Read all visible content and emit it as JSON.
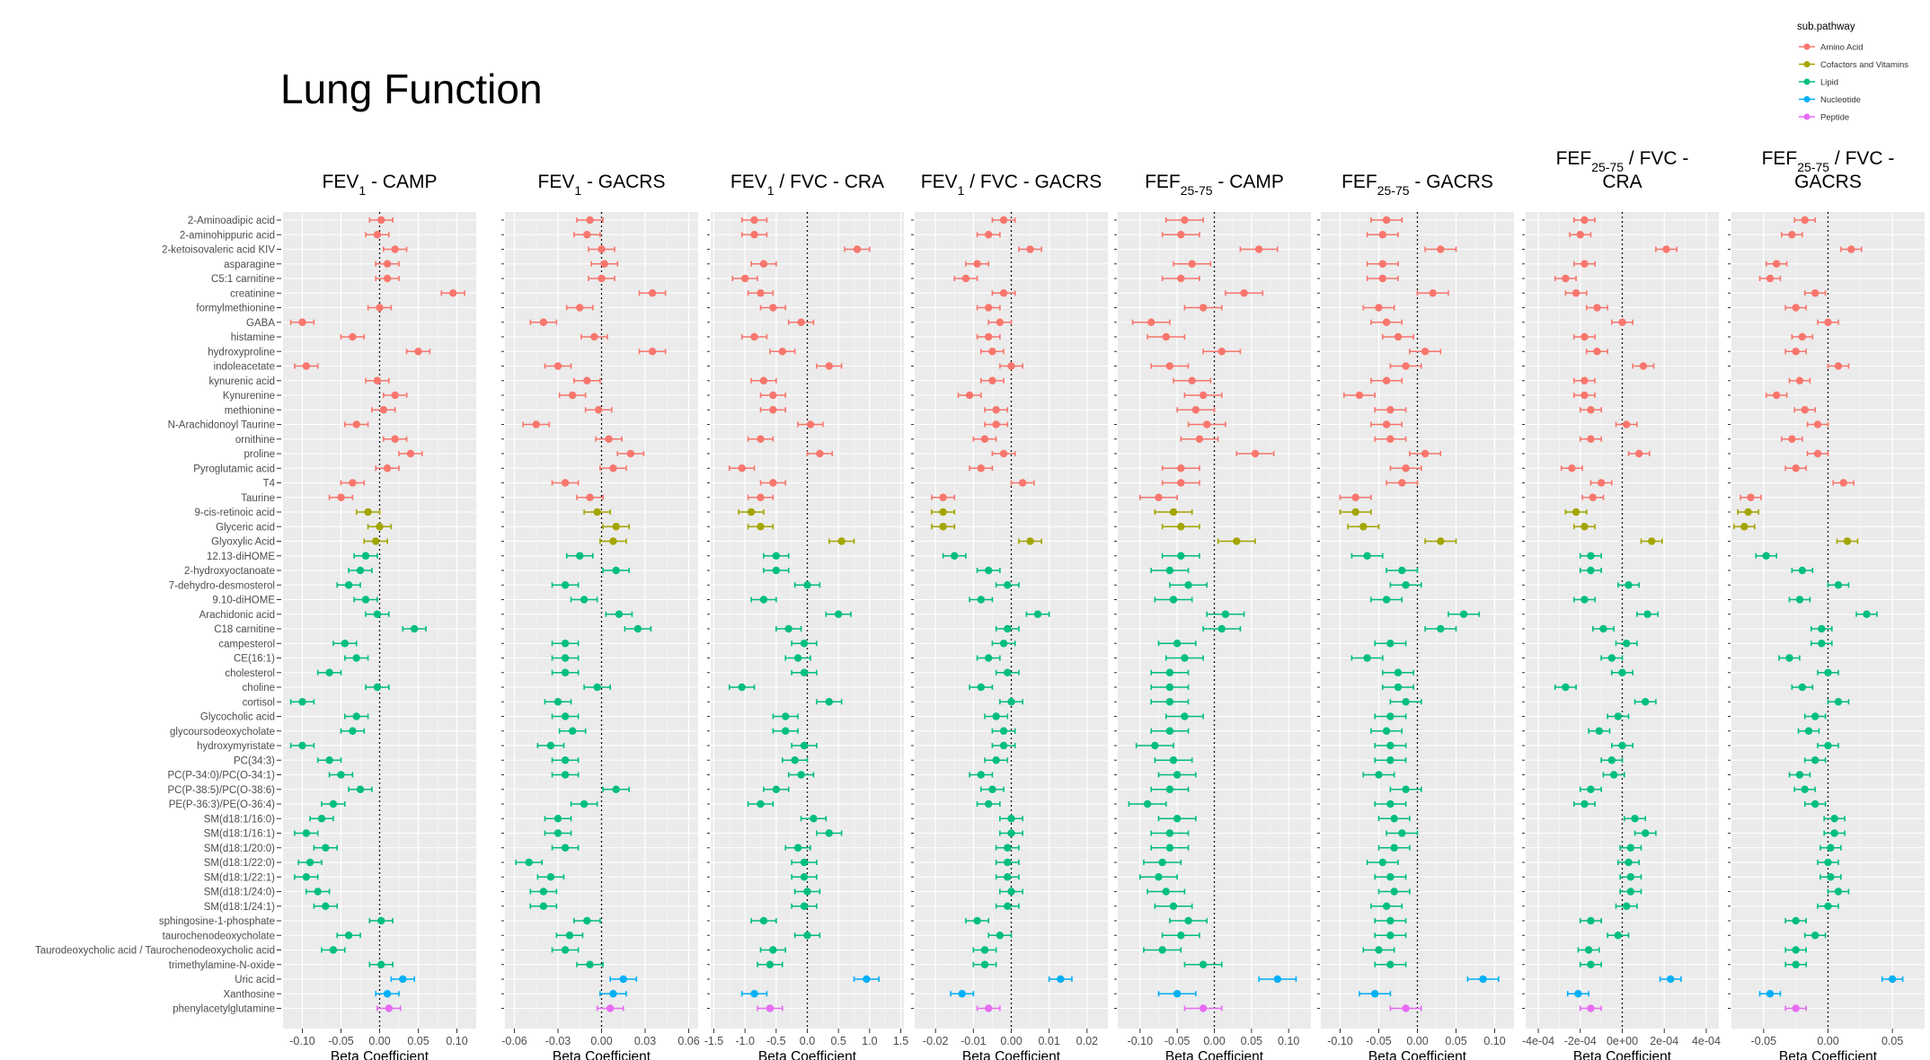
{
  "title": "Lung Function",
  "legend": {
    "title": "sub.pathway",
    "position": "top-right",
    "items": [
      {
        "label": "Amino Acid",
        "color": "#F8766D"
      },
      {
        "label": "Cofactors and Vitamins",
        "color": "#A3A500"
      },
      {
        "label": "Lipid",
        "color": "#00BF7D"
      },
      {
        "label": "Nucleotide",
        "color": "#00B0F6"
      },
      {
        "label": "Peptide",
        "color": "#E76BF3"
      }
    ]
  },
  "chart_data": {
    "type": "forest",
    "xlabel": "Beta Coefficient",
    "grid": true,
    "reference_line": 0,
    "metabolites": [
      {
        "name": "2-Aminoadipic acid",
        "group": "Amino Acid"
      },
      {
        "name": "2-aminohippuric acid",
        "group": "Amino Acid"
      },
      {
        "name": "2-ketoisovaleric acid KIV",
        "group": "Amino Acid"
      },
      {
        "name": "asparagine",
        "group": "Amino Acid"
      },
      {
        "name": "C5:1 carnitine",
        "group": "Amino Acid"
      },
      {
        "name": "creatinine",
        "group": "Amino Acid"
      },
      {
        "name": "formylmethionine",
        "group": "Amino Acid"
      },
      {
        "name": "GABA",
        "group": "Amino Acid"
      },
      {
        "name": "histamine",
        "group": "Amino Acid"
      },
      {
        "name": "hydroxyproline",
        "group": "Amino Acid"
      },
      {
        "name": "indoleacetate",
        "group": "Amino Acid"
      },
      {
        "name": "kynurenic acid",
        "group": "Amino Acid"
      },
      {
        "name": "Kynurenine",
        "group": "Amino Acid"
      },
      {
        "name": "methionine",
        "group": "Amino Acid"
      },
      {
        "name": "N-Arachidonoyl Taurine",
        "group": "Amino Acid"
      },
      {
        "name": "ornithine",
        "group": "Amino Acid"
      },
      {
        "name": "proline",
        "group": "Amino Acid"
      },
      {
        "name": "Pyroglutamic acid",
        "group": "Amino Acid"
      },
      {
        "name": "T4",
        "group": "Amino Acid"
      },
      {
        "name": "Taurine",
        "group": "Amino Acid"
      },
      {
        "name": "9-cis-retinoic acid",
        "group": "Cofactors and Vitamins"
      },
      {
        "name": "Glyceric acid",
        "group": "Cofactors and Vitamins"
      },
      {
        "name": "Glyoxylic Acid",
        "group": "Cofactors and Vitamins"
      },
      {
        "name": "12.13-diHOME",
        "group": "Lipid"
      },
      {
        "name": "2-hydroxyoctanoate",
        "group": "Lipid"
      },
      {
        "name": "7-dehydro-desmosterol",
        "group": "Lipid"
      },
      {
        "name": "9.10-diHOME",
        "group": "Lipid"
      },
      {
        "name": "Arachidonic acid",
        "group": "Lipid"
      },
      {
        "name": "C18 carnitine",
        "group": "Lipid"
      },
      {
        "name": "campesterol",
        "group": "Lipid"
      },
      {
        "name": "CE(16:1)",
        "group": "Lipid"
      },
      {
        "name": "cholesterol",
        "group": "Lipid"
      },
      {
        "name": "choline",
        "group": "Lipid"
      },
      {
        "name": "cortisol",
        "group": "Lipid"
      },
      {
        "name": "Glycocholic acid",
        "group": "Lipid"
      },
      {
        "name": "glycoursodeoxycholate",
        "group": "Lipid"
      },
      {
        "name": "hydroxymyristate",
        "group": "Lipid"
      },
      {
        "name": "PC(34:3)",
        "group": "Lipid"
      },
      {
        "name": "PC(P-34:0)/PC(O-34:1)",
        "group": "Lipid"
      },
      {
        "name": "PC(P-38:5)/PC(O-38:6)",
        "group": "Lipid"
      },
      {
        "name": "PE(P-36:3)/PE(O-36:4)",
        "group": "Lipid"
      },
      {
        "name": "SM(d18:1/16:0)",
        "group": "Lipid"
      },
      {
        "name": "SM(d18:1/16:1)",
        "group": "Lipid"
      },
      {
        "name": "SM(d18:1/20:0)",
        "group": "Lipid"
      },
      {
        "name": "SM(d18:1/22:0)",
        "group": "Lipid"
      },
      {
        "name": "SM(d18:1/22:1)",
        "group": "Lipid"
      },
      {
        "name": "SM(d18:1/24:0)",
        "group": "Lipid"
      },
      {
        "name": "SM(d18:1/24:1)",
        "group": "Lipid"
      },
      {
        "name": "sphingosine-1-phosphate",
        "group": "Lipid"
      },
      {
        "name": "taurochenodeoxycholate",
        "group": "Lipid"
      },
      {
        "name": "Taurodeoxycholic acid / Taurochenodeoxycholic acid",
        "group": "Lipid"
      },
      {
        "name": "trimethylamine-N-oxide",
        "group": "Lipid"
      },
      {
        "name": "Uric acid",
        "group": "Nucleotide"
      },
      {
        "name": "Xanthosine",
        "group": "Nucleotide"
      },
      {
        "name": "phenylacetylglutamine",
        "group": "Peptide"
      }
    ],
    "panels": [
      {
        "title_main": "FEV",
        "title_sub": "1",
        "title_rest": " - CAMP",
        "xlim": [
          -0.125,
          0.125
        ],
        "ticks": [
          -0.1,
          -0.05,
          0.0,
          0.05,
          0.1
        ],
        "tick_labels": [
          "-0.10",
          "-0.05",
          "0.00",
          "0.05",
          "0.10"
        ],
        "estimates": [
          0.002,
          -0.003,
          0.02,
          0.01,
          0.01,
          0.095,
          0.0,
          -0.1,
          -0.035,
          0.05,
          -0.095,
          -0.003,
          0.02,
          0.005,
          -0.03,
          0.02,
          0.04,
          0.01,
          -0.035,
          -0.05,
          -0.015,
          0.0,
          -0.005,
          -0.018,
          -0.025,
          -0.04,
          -0.018,
          -0.003,
          0.045,
          -0.045,
          -0.03,
          -0.065,
          -0.003,
          -0.1,
          -0.03,
          -0.035,
          -0.1,
          -0.065,
          -0.05,
          -0.025,
          -0.06,
          -0.075,
          -0.095,
          -0.07,
          -0.09,
          -0.095,
          -0.08,
          -0.07,
          0.002,
          -0.04,
          -0.06,
          0.002,
          0.03,
          0.01,
          0.012
        ],
        "ci": 0.015
      },
      {
        "title_main": "FEV",
        "title_sub": "1",
        "title_rest": " - GACRS",
        "xlim": [
          -0.0665,
          0.0665
        ],
        "ticks": [
          -0.06,
          -0.03,
          0.0,
          0.03,
          0.06
        ],
        "tick_labels": [
          "-0.06",
          "-0.03",
          "0.00",
          "0.03",
          "0.06"
        ],
        "estimates": [
          -0.008,
          -0.01,
          0.0,
          0.002,
          0.0,
          0.035,
          -0.015,
          -0.04,
          -0.005,
          0.035,
          -0.03,
          -0.01,
          -0.02,
          -0.002,
          -0.045,
          0.005,
          0.02,
          0.008,
          -0.025,
          -0.008,
          -0.003,
          0.01,
          0.008,
          -0.015,
          0.01,
          -0.025,
          -0.012,
          0.012,
          0.025,
          -0.025,
          -0.025,
          -0.025,
          -0.003,
          -0.03,
          -0.025,
          -0.02,
          -0.035,
          -0.025,
          -0.025,
          0.01,
          -0.012,
          -0.03,
          -0.03,
          -0.025,
          -0.05,
          -0.035,
          -0.04,
          -0.04,
          -0.01,
          -0.022,
          -0.025,
          -0.008,
          0.015,
          0.008,
          0.006
        ],
        "ci": 0.009
      },
      {
        "title_main": "FEV",
        "title_sub": "1",
        "title_rest": " / FVC - CRA",
        "xlim": [
          -1.55,
          1.55
        ],
        "ticks": [
          -1.5,
          -1.0,
          -0.5,
          0.0,
          0.5,
          1.0,
          1.5
        ],
        "tick_labels": [
          "-1.5",
          "-1.0",
          "-0.5",
          "0.0",
          "0.5",
          "1.0",
          "1.5"
        ],
        "estimates": [
          -0.85,
          -0.85,
          0.8,
          -0.7,
          -1.0,
          -0.75,
          -0.55,
          -0.1,
          -0.85,
          -0.4,
          0.35,
          -0.7,
          -0.55,
          -0.55,
          0.05,
          -0.75,
          0.2,
          -1.05,
          -0.55,
          -0.75,
          -0.9,
          -0.75,
          0.55,
          -0.5,
          -0.5,
          0.0,
          -0.7,
          0.5,
          -0.3,
          -0.05,
          -0.15,
          -0.05,
          -1.05,
          0.35,
          -0.35,
          -0.35,
          -0.05,
          -0.2,
          -0.1,
          -0.5,
          -0.75,
          0.1,
          0.35,
          -0.15,
          -0.05,
          -0.05,
          0.0,
          -0.05,
          -0.7,
          0.0,
          -0.55,
          -0.6,
          0.95,
          -0.85,
          -0.6
        ],
        "ci": 0.2
      },
      {
        "title_main": "FEV",
        "title_sub": "1",
        "title_rest": " / FVC - GACRS",
        "xlim": [
          -0.0255,
          0.0255
        ],
        "ticks": [
          -0.02,
          -0.01,
          0.0,
          0.01,
          0.02
        ],
        "tick_labels": [
          "-0.02",
          "-0.01",
          "0.00",
          "0.01",
          "0.02"
        ],
        "estimates": [
          -0.002,
          -0.006,
          0.005,
          -0.009,
          -0.012,
          -0.002,
          -0.006,
          -0.003,
          -0.006,
          -0.005,
          0.0,
          -0.005,
          -0.011,
          -0.004,
          -0.004,
          -0.007,
          -0.002,
          -0.008,
          0.003,
          -0.018,
          -0.018,
          -0.018,
          0.005,
          -0.015,
          -0.006,
          -0.001,
          -0.008,
          0.007,
          -0.001,
          -0.002,
          -0.006,
          -0.001,
          -0.008,
          0.0,
          -0.004,
          -0.002,
          -0.002,
          -0.004,
          -0.008,
          -0.005,
          -0.006,
          0.0,
          0.0,
          -0.001,
          -0.001,
          -0.001,
          0.0,
          -0.001,
          -0.009,
          -0.003,
          -0.007,
          -0.007,
          0.013,
          -0.013,
          -0.006
        ],
        "ci": 0.003
      },
      {
        "title_main": "FEF",
        "title_sub": "25-75",
        "title_rest": " - CAMP",
        "xlim": [
          -0.13,
          0.13
        ],
        "ticks": [
          -0.1,
          -0.05,
          0.0,
          0.05,
          0.1
        ],
        "tick_labels": [
          "-0.10",
          "-0.05",
          "0.00",
          "0.05",
          "0.10"
        ],
        "estimates": [
          -0.04,
          -0.045,
          0.06,
          -0.03,
          -0.045,
          0.04,
          -0.015,
          -0.085,
          -0.065,
          0.01,
          -0.06,
          -0.03,
          -0.015,
          -0.025,
          -0.01,
          -0.02,
          0.055,
          -0.045,
          -0.045,
          -0.075,
          -0.055,
          -0.045,
          0.03,
          -0.045,
          -0.06,
          -0.035,
          -0.055,
          0.015,
          0.01,
          -0.05,
          -0.04,
          -0.06,
          -0.06,
          -0.06,
          -0.04,
          -0.06,
          -0.08,
          -0.055,
          -0.05,
          -0.06,
          -0.09,
          -0.05,
          -0.06,
          -0.06,
          -0.07,
          -0.075,
          -0.065,
          -0.055,
          -0.035,
          -0.045,
          -0.07,
          -0.015,
          0.085,
          -0.05,
          -0.015
        ],
        "ci": 0.025
      },
      {
        "title_main": "FEF",
        "title_sub": "25-75",
        "title_rest": " - GACRS",
        "xlim": [
          -0.125,
          0.125
        ],
        "ticks": [
          -0.1,
          -0.05,
          0.0,
          0.05,
          0.1
        ],
        "tick_labels": [
          "-0.10",
          "-0.05",
          "0.00",
          "0.05",
          "0.10"
        ],
        "estimates": [
          -0.04,
          -0.045,
          0.03,
          -0.045,
          -0.045,
          0.02,
          -0.05,
          -0.04,
          -0.025,
          0.01,
          -0.015,
          -0.04,
          -0.075,
          -0.035,
          -0.04,
          -0.035,
          0.01,
          -0.015,
          -0.02,
          -0.08,
          -0.08,
          -0.07,
          0.03,
          -0.065,
          -0.02,
          -0.015,
          -0.04,
          0.06,
          0.03,
          -0.035,
          -0.065,
          -0.025,
          -0.025,
          -0.015,
          -0.035,
          -0.04,
          -0.035,
          -0.035,
          -0.05,
          -0.015,
          -0.035,
          -0.03,
          -0.02,
          -0.03,
          -0.045,
          -0.035,
          -0.03,
          -0.04,
          -0.035,
          -0.035,
          -0.05,
          -0.035,
          0.085,
          -0.055,
          -0.015
        ],
        "ci": 0.02
      },
      {
        "title_main": "FEF",
        "title_sub": "25-75",
        "title_rest": " / FVC -",
        "title_line2": "CRA",
        "xlim": [
          -0.00046,
          0.00046
        ],
        "ticks": [
          -0.0004,
          -0.0002,
          0.0,
          0.0002,
          0.0004
        ],
        "tick_labels": [
          "-4e-04",
          "-2e-04",
          "0e+00",
          "2e-04",
          "4e-04"
        ],
        "estimates": [
          -0.00018,
          -0.0002,
          0.00021,
          -0.00018,
          -0.00027,
          -0.00022,
          -0.00012,
          0.0,
          -0.00018,
          -0.00012,
          0.0001,
          -0.00018,
          -0.00018,
          -0.00015,
          2e-05,
          -0.00015,
          8e-05,
          -0.00024,
          -0.0001,
          -0.00014,
          -0.00022,
          -0.00018,
          0.00014,
          -0.00015,
          -0.00015,
          3e-05,
          -0.00018,
          0.00012,
          -9e-05,
          2e-05,
          -5e-05,
          0.0,
          -0.00027,
          0.00011,
          -2e-05,
          -0.00011,
          0.0,
          -5e-05,
          -4e-05,
          -0.00015,
          -0.00018,
          6e-05,
          0.00011,
          4e-05,
          3e-05,
          4e-05,
          4e-05,
          2e-05,
          -0.00015,
          -2e-05,
          -0.00016,
          -0.00015,
          0.00023,
          -0.00021,
          -0.00015
        ],
        "ci": 5e-05
      },
      {
        "title_main": "FEF",
        "title_sub": "25-75",
        "title_rest": " / FVC -",
        "title_line2": "GACRS",
        "xlim": [
          -0.075,
          0.075
        ],
        "ticks": [
          -0.05,
          0.0,
          0.05
        ],
        "tick_labels": [
          "-0.05",
          "0.00",
          "0.05"
        ],
        "estimates": [
          -0.018,
          -0.028,
          0.018,
          -0.04,
          -0.045,
          -0.01,
          -0.025,
          0.0,
          -0.02,
          -0.025,
          0.008,
          -0.022,
          -0.04,
          -0.018,
          -0.008,
          -0.028,
          -0.008,
          -0.025,
          0.012,
          -0.06,
          -0.062,
          -0.065,
          0.015,
          -0.048,
          -0.02,
          0.008,
          -0.022,
          0.03,
          -0.005,
          -0.005,
          -0.03,
          0.0,
          -0.02,
          0.008,
          -0.01,
          -0.015,
          0.0,
          -0.01,
          -0.022,
          -0.018,
          -0.01,
          0.005,
          0.005,
          0.002,
          0.0,
          0.002,
          0.008,
          0.0,
          -0.025,
          -0.01,
          -0.025,
          -0.025,
          0.05,
          -0.045,
          -0.025
        ],
        "ci": 0.008
      }
    ]
  }
}
